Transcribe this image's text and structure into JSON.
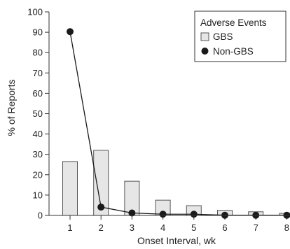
{
  "chart_data": {
    "type": "bar",
    "categories": [
      "1",
      "2",
      "3",
      "4",
      "5",
      "6",
      "7",
      "8"
    ],
    "series": [
      {
        "name": "GBS",
        "type": "bar",
        "values": [
          26.5,
          32,
          16.8,
          7.5,
          4.8,
          2.5,
          1.8,
          1.0
        ],
        "color": "#e6e6e6"
      },
      {
        "name": "Non-GBS",
        "type": "line",
        "values": [
          90.3,
          4.1,
          1.2,
          0.6,
          0.6,
          0.1,
          0.1,
          0.1
        ],
        "color": "#1a1a1a"
      }
    ],
    "xlabel": "Onset Interval, wk",
    "ylabel": "% of Reports",
    "ylim": [
      0,
      100
    ],
    "yticks": [
      0,
      10,
      20,
      30,
      40,
      50,
      60,
      70,
      80,
      90,
      100
    ],
    "legend": {
      "title": "Adverse Events",
      "position": "top-right"
    }
  }
}
